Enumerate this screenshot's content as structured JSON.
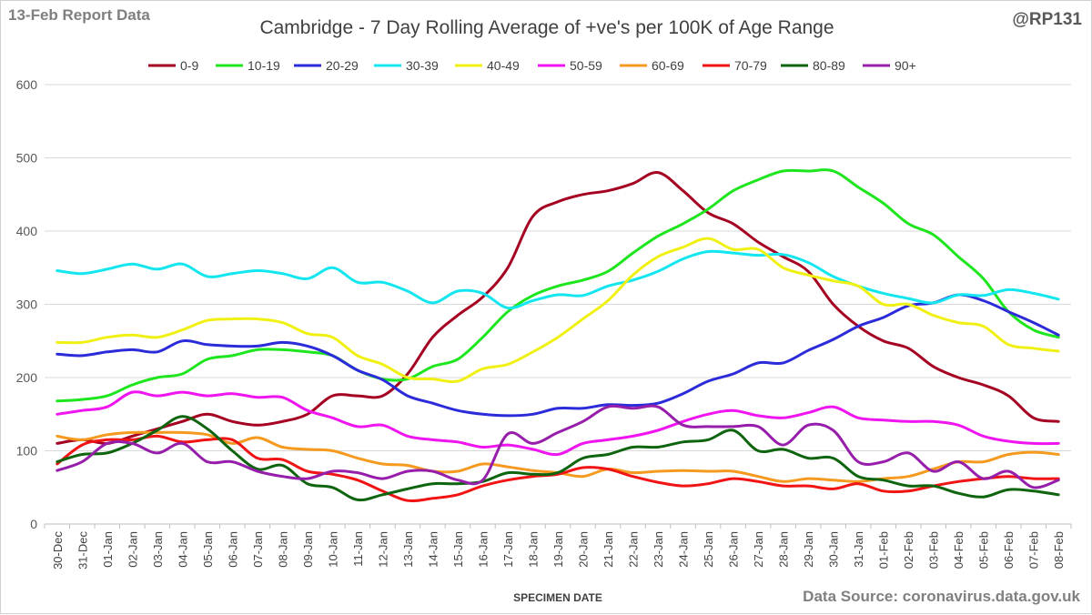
{
  "header": {
    "report_label": "13-Feb Report Data",
    "handle": "@RP131",
    "source": "Data Source: coronavirus.data.gov.uk"
  },
  "chart_data": {
    "type": "line",
    "title": "Cambridge - 7 Day Rolling Average of +ve's per 100K of Age Range",
    "xlabel": "SPECIMEN DATE",
    "ylabel": "",
    "ylim": [
      0,
      600
    ],
    "yticks": [
      0,
      100,
      200,
      300,
      400,
      500,
      600
    ],
    "grid": true,
    "legend_position": "top",
    "categories": [
      "30-Dec",
      "31-Dec",
      "01-Jan",
      "02-Jan",
      "03-Jan",
      "04-Jan",
      "05-Jan",
      "06-Jan",
      "07-Jan",
      "08-Jan",
      "09-Jan",
      "10-Jan",
      "11-Jan",
      "12-Jan",
      "13-Jan",
      "14-Jan",
      "15-Jan",
      "16-Jan",
      "17-Jan",
      "18-Jan",
      "19-Jan",
      "20-Jan",
      "21-Jan",
      "22-Jan",
      "23-Jan",
      "24-Jan",
      "25-Jan",
      "26-Jan",
      "27-Jan",
      "28-Jan",
      "29-Jan",
      "30-Jan",
      "31-Jan",
      "01-Feb",
      "02-Feb",
      "03-Feb",
      "04-Feb",
      "05-Feb",
      "06-Feb",
      "07-Feb",
      "08-Feb"
    ],
    "series": [
      {
        "name": "0-9",
        "color": "#a50021",
        "values": [
          110,
          115,
          110,
          120,
          130,
          140,
          150,
          140,
          135,
          140,
          150,
          175,
          175,
          175,
          205,
          255,
          285,
          310,
          350,
          420,
          440,
          450,
          455,
          465,
          480,
          455,
          425,
          410,
          385,
          365,
          345,
          300,
          270,
          250,
          240,
          215,
          200,
          190,
          175,
          145,
          140
        ]
      },
      {
        "name": "10-19",
        "color": "#1ee61e",
        "values": [
          168,
          170,
          175,
          190,
          200,
          205,
          225,
          230,
          238,
          238,
          235,
          230,
          210,
          198,
          198,
          215,
          225,
          255,
          290,
          312,
          325,
          333,
          345,
          370,
          393,
          410,
          430,
          455,
          470,
          482,
          482,
          482,
          460,
          438,
          410,
          395,
          365,
          335,
          290,
          265,
          255
        ]
      },
      {
        "name": "20-29",
        "color": "#2b2bd9",
        "values": [
          232,
          230,
          235,
          238,
          235,
          250,
          245,
          243,
          243,
          248,
          243,
          230,
          210,
          197,
          175,
          165,
          155,
          150,
          148,
          150,
          158,
          158,
          163,
          162,
          165,
          178,
          195,
          205,
          220,
          220,
          237,
          252,
          270,
          282,
          298,
          302,
          313,
          305,
          290,
          275,
          258
        ]
      },
      {
        "name": "30-39",
        "color": "#14e6f0",
        "values": [
          346,
          342,
          348,
          355,
          348,
          355,
          338,
          342,
          346,
          342,
          335,
          350,
          330,
          330,
          318,
          302,
          318,
          315,
          295,
          305,
          313,
          312,
          325,
          333,
          345,
          362,
          372,
          370,
          367,
          368,
          357,
          338,
          325,
          315,
          308,
          302,
          313,
          312,
          320,
          315,
          307
        ]
      },
      {
        "name": "40-49",
        "color": "#f0f014",
        "values": [
          248,
          248,
          255,
          258,
          255,
          265,
          278,
          280,
          280,
          275,
          260,
          255,
          230,
          218,
          200,
          198,
          195,
          212,
          218,
          235,
          255,
          280,
          305,
          340,
          365,
          378,
          390,
          375,
          375,
          350,
          340,
          332,
          325,
          300,
          300,
          285,
          275,
          270,
          245,
          240,
          236
        ]
      },
      {
        "name": "50-59",
        "color": "#f014f0",
        "values": [
          150,
          155,
          160,
          180,
          175,
          180,
          175,
          178,
          173,
          173,
          155,
          145,
          133,
          135,
          120,
          115,
          112,
          105,
          108,
          102,
          95,
          110,
          115,
          120,
          128,
          140,
          150,
          155,
          148,
          145,
          152,
          160,
          145,
          142,
          140,
          140,
          135,
          120,
          113,
          110,
          110
        ]
      },
      {
        "name": "60-69",
        "color": "#f59a1e",
        "values": [
          120,
          115,
          122,
          125,
          125,
          125,
          122,
          110,
          118,
          105,
          102,
          100,
          90,
          82,
          80,
          72,
          72,
          82,
          78,
          73,
          70,
          65,
          75,
          70,
          72,
          73,
          72,
          72,
          65,
          58,
          62,
          60,
          58,
          62,
          65,
          75,
          85,
          85,
          95,
          98,
          95
        ]
      },
      {
        "name": "70-79",
        "color": "#f01414",
        "values": [
          82,
          108,
          115,
          115,
          120,
          112,
          115,
          115,
          90,
          88,
          72,
          68,
          60,
          45,
          32,
          35,
          40,
          52,
          60,
          65,
          68,
          77,
          75,
          65,
          57,
          52,
          55,
          62,
          58,
          52,
          52,
          48,
          55,
          45,
          45,
          52,
          58,
          62,
          65,
          62,
          62
        ]
      },
      {
        "name": "80-89",
        "color": "#0f640f",
        "values": [
          85,
          95,
          97,
          110,
          128,
          147,
          130,
          100,
          75,
          80,
          55,
          50,
          33,
          40,
          48,
          55,
          55,
          58,
          70,
          68,
          70,
          90,
          95,
          105,
          105,
          112,
          115,
          128,
          100,
          102,
          90,
          90,
          65,
          60,
          52,
          52,
          42,
          37,
          47,
          45,
          40
        ]
      },
      {
        "name": "90+",
        "color": "#961eaa",
        "values": [
          73,
          85,
          110,
          110,
          97,
          110,
          85,
          85,
          72,
          65,
          62,
          72,
          70,
          62,
          72,
          72,
          60,
          60,
          123,
          110,
          125,
          140,
          160,
          158,
          160,
          135,
          133,
          133,
          133,
          108,
          135,
          128,
          85,
          85,
          97,
          72,
          85,
          62,
          72,
          50,
          60
        ]
      }
    ]
  }
}
